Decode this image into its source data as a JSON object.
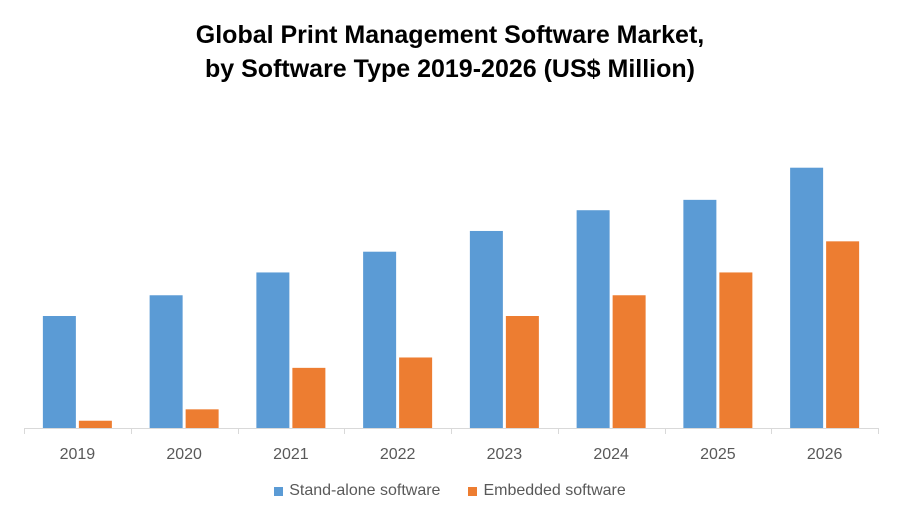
{
  "chart_data": {
    "type": "bar",
    "title_lines": [
      "Global Print Management Software Market,",
      "by Software Type 2019-2026 (US$ Million)"
    ],
    "categories": [
      "2019",
      "2020",
      "2021",
      "2022",
      "2023",
      "2024",
      "2025",
      "2026"
    ],
    "series": [
      {
        "name": "Stand-alone software",
        "color": "#5B9BD5",
        "values": [
          108,
          128,
          150,
          170,
          190,
          210,
          220,
          251
        ]
      },
      {
        "name": "Embedded software",
        "color": "#ED7D31",
        "values": [
          7,
          18,
          58,
          68,
          108,
          128,
          150,
          180
        ]
      }
    ],
    "xlabel": "",
    "ylabel": "",
    "ylim": [
      0,
      270
    ],
    "grid": false,
    "legend_position": "bottom"
  }
}
